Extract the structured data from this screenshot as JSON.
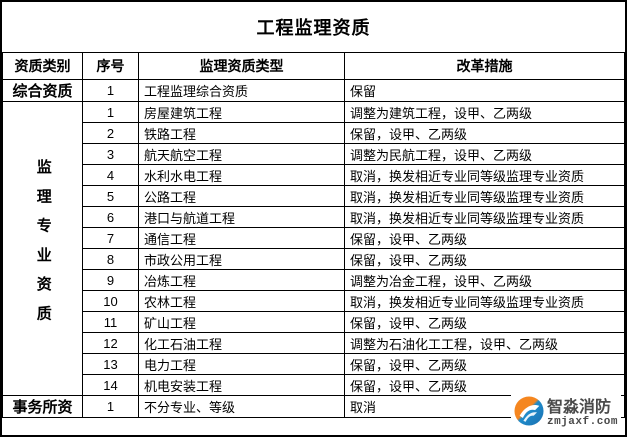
{
  "title": "工程监理资质",
  "table": {
    "headers": [
      "资质类别",
      "序号",
      "监理资质类型",
      "改革措施"
    ],
    "sections": [
      {
        "category": "综合资质",
        "vertical": false,
        "rows": [
          {
            "no": "1",
            "type": "工程监理综合资质",
            "measure": "保留"
          }
        ]
      },
      {
        "category": "监理专业资质",
        "vertical": true,
        "rows": [
          {
            "no": "1",
            "type": "房屋建筑工程",
            "measure": "调整为建筑工程，设甲、乙两级"
          },
          {
            "no": "2",
            "type": "铁路工程",
            "measure": "保留，设甲、乙两级"
          },
          {
            "no": "3",
            "type": "航天航空工程",
            "measure": "调整为民航工程，设甲、乙两级"
          },
          {
            "no": "4",
            "type": "水利水电工程",
            "measure": "取消，换发相近专业同等级监理专业资质"
          },
          {
            "no": "5",
            "type": "公路工程",
            "measure": "取消，换发相近专业同等级监理专业资质"
          },
          {
            "no": "6",
            "type": "港口与航道工程",
            "measure": "取消，换发相近专业同等级监理专业资质"
          },
          {
            "no": "7",
            "type": "通信工程",
            "measure": "保留，设甲、乙两级"
          },
          {
            "no": "8",
            "type": "市政公用工程",
            "measure": "保留，设甲、乙两级"
          },
          {
            "no": "9",
            "type": "冶炼工程",
            "measure": "调整为冶金工程，设甲、乙两级"
          },
          {
            "no": "10",
            "type": "农林工程",
            "measure": "取消，换发相近专业同等级监理专业资质"
          },
          {
            "no": "11",
            "type": "矿山工程",
            "measure": "保留，设甲、乙两级"
          },
          {
            "no": "12",
            "type": "化工石油工程",
            "measure": "调整为石油化工工程，设甲、乙两级"
          },
          {
            "no": "13",
            "type": "电力工程",
            "measure": "保留，设甲、乙两级"
          },
          {
            "no": "14",
            "type": "机电安装工程",
            "measure": "保留，设甲、乙两级"
          }
        ]
      },
      {
        "category": "事务所资",
        "vertical": false,
        "rows": [
          {
            "no": "1",
            "type": "不分专业、等级",
            "measure": "取消"
          }
        ]
      }
    ]
  },
  "watermark": {
    "brand": "智淼消防",
    "url": "zmjaxf.com",
    "logo_icon": "zhimiao-fire-logo",
    "colors": {
      "orange": "#f5861f",
      "blue": "#1f8ccb",
      "text": "#4a4a4a"
    }
  },
  "colors": {
    "background": "#ffffff",
    "border": "#000000",
    "text": "#000000"
  }
}
